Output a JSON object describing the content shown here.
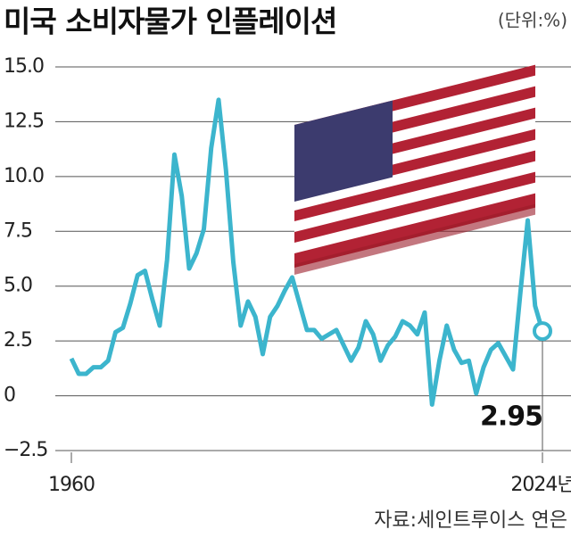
{
  "chart_data": {
    "type": "line",
    "title": "미국 소비자물가 인플레이션",
    "unit": "(단위:%)",
    "source": "자료:세인트루이스 연은",
    "color": "#3cb5cd",
    "x": [
      1960,
      1961,
      1962,
      1963,
      1964,
      1965,
      1966,
      1967,
      1968,
      1969,
      1970,
      1971,
      1972,
      1973,
      1974,
      1975,
      1976,
      1977,
      1978,
      1979,
      1980,
      1981,
      1982,
      1983,
      1984,
      1985,
      1986,
      1987,
      1988,
      1989,
      1990,
      1991,
      1992,
      1993,
      1994,
      1995,
      1996,
      1997,
      1998,
      1999,
      2000,
      2001,
      2002,
      2003,
      2004,
      2005,
      2006,
      2007,
      2008,
      2009,
      2010,
      2011,
      2012,
      2013,
      2014,
      2015,
      2016,
      2017,
      2018,
      2019,
      2020,
      2021,
      2022,
      2023,
      2024
    ],
    "values": [
      1.7,
      1.0,
      1.0,
      1.3,
      1.3,
      1.6,
      2.9,
      3.1,
      4.2,
      5.5,
      5.7,
      4.4,
      3.2,
      6.2,
      11.0,
      9.1,
      5.8,
      6.5,
      7.6,
      11.3,
      13.5,
      10.3,
      6.1,
      3.2,
      4.3,
      3.6,
      1.9,
      3.6,
      4.1,
      4.8,
      5.4,
      4.2,
      3.0,
      3.0,
      2.6,
      2.8,
      3.0,
      2.3,
      1.6,
      2.2,
      3.4,
      2.8,
      1.6,
      2.3,
      2.7,
      3.4,
      3.2,
      2.8,
      3.8,
      -0.4,
      1.6,
      3.2,
      2.1,
      1.5,
      1.6,
      0.1,
      1.3,
      2.1,
      2.4,
      1.8,
      1.2,
      4.7,
      8.0,
      4.1,
      2.95
    ],
    "xlim": [
      1960,
      2024
    ],
    "xticks": [
      1960,
      {
        "value": 2024,
        "label": "2024년"
      }
    ],
    "ylim": [
      -2.5,
      15
    ],
    "yticks": [
      {
        "value": 15,
        "label": "15.0"
      },
      {
        "value": 12.5,
        "label": "12.5"
      },
      {
        "value": 10,
        "label": "10.0"
      },
      {
        "value": 7.5,
        "label": "7.5"
      },
      {
        "value": 5,
        "label": "5.0"
      },
      {
        "value": 2.5,
        "label": "2.5"
      },
      0,
      {
        "value": -2.5,
        "label": "−2.5"
      }
    ],
    "grid": true
  }
}
